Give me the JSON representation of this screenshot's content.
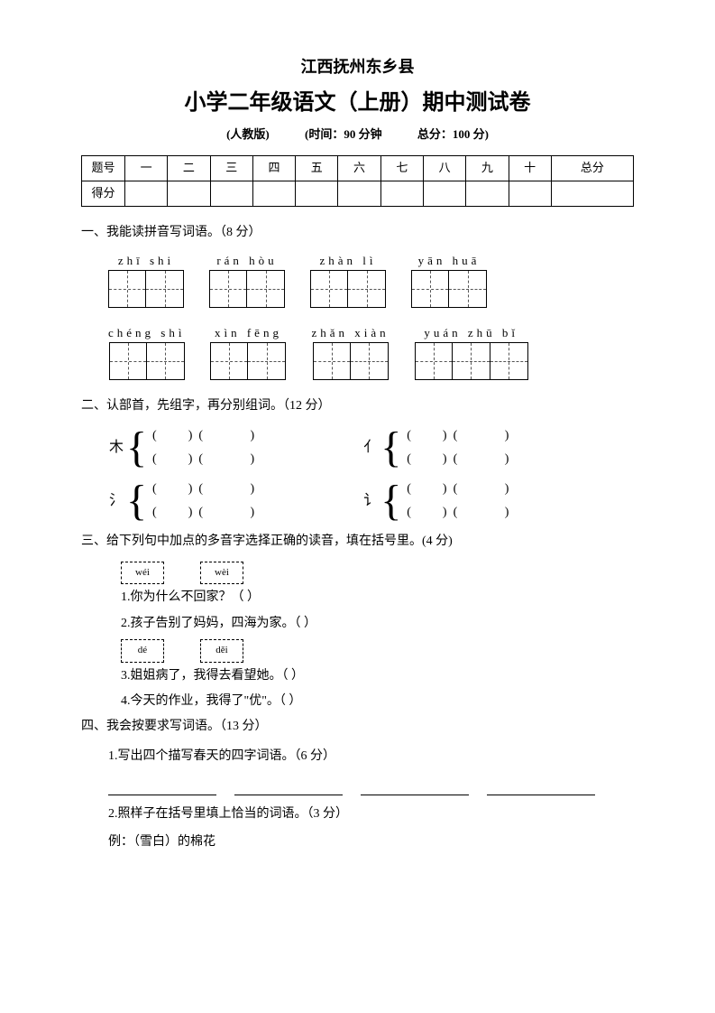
{
  "header": {
    "line1": "江西抚州东乡县",
    "line2": "小学二年级语文（上册）期中测试卷",
    "edition": "(人教版)",
    "time": "(时间：90 分钟",
    "total": "总分：100 分)"
  },
  "scoreTable": {
    "row1": [
      "题号",
      "一",
      "二",
      "三",
      "四",
      "五",
      "六",
      "七",
      "八",
      "九",
      "十",
      "总分"
    ],
    "row2Label": "得分"
  },
  "q1": {
    "title": "一、我能读拼音写词语。（8 分）",
    "row1": [
      {
        "pinyin": "zhī  shi",
        "cells": 2
      },
      {
        "pinyin": "rán  hòu",
        "cells": 2
      },
      {
        "pinyin": "zhàn  lì",
        "cells": 2
      },
      {
        "pinyin": "yān  huā",
        "cells": 2
      }
    ],
    "row2": [
      {
        "pinyin": "chéng shì",
        "cells": 2
      },
      {
        "pinyin": "xìn  fēng",
        "cells": 2
      },
      {
        "pinyin": "zhǎn xiàn",
        "cells": 2
      },
      {
        "pinyin": "yuán zhū  bǐ",
        "cells": 3
      }
    ]
  },
  "q2": {
    "title": "二、认部首，先组字，再分别组词。（12 分）",
    "groups": [
      {
        "radical": "木"
      },
      {
        "radical": "亻"
      },
      {
        "radical": "氵"
      },
      {
        "radical": "讠"
      }
    ],
    "lineTemplate": "(          )  (               )"
  },
  "q3": {
    "title": "三、给下列句中加点的多音字选择正确的读音，填在括号里。(4 分)",
    "box1a": "wéi",
    "box1b": "wèi",
    "item1": "1.你为什么不回家？（          ）",
    "item2": "2.孩子告别了妈妈，四海为家。（          ）",
    "box2a": "dé",
    "box2b": "děi",
    "item3": "3.姐姐病了，我得去看望她。（          ）",
    "item4": "4.今天的作业，我得了\"优\"。（          ）"
  },
  "q4": {
    "title": "四、我会按要求写词语。（13 分）",
    "item1": "1.写出四个描写春天的四字词语。（6 分）",
    "item2": "2.照样子在括号里填上恰当的词语。（3 分）",
    "example": "例：（雪白）的棉花"
  }
}
